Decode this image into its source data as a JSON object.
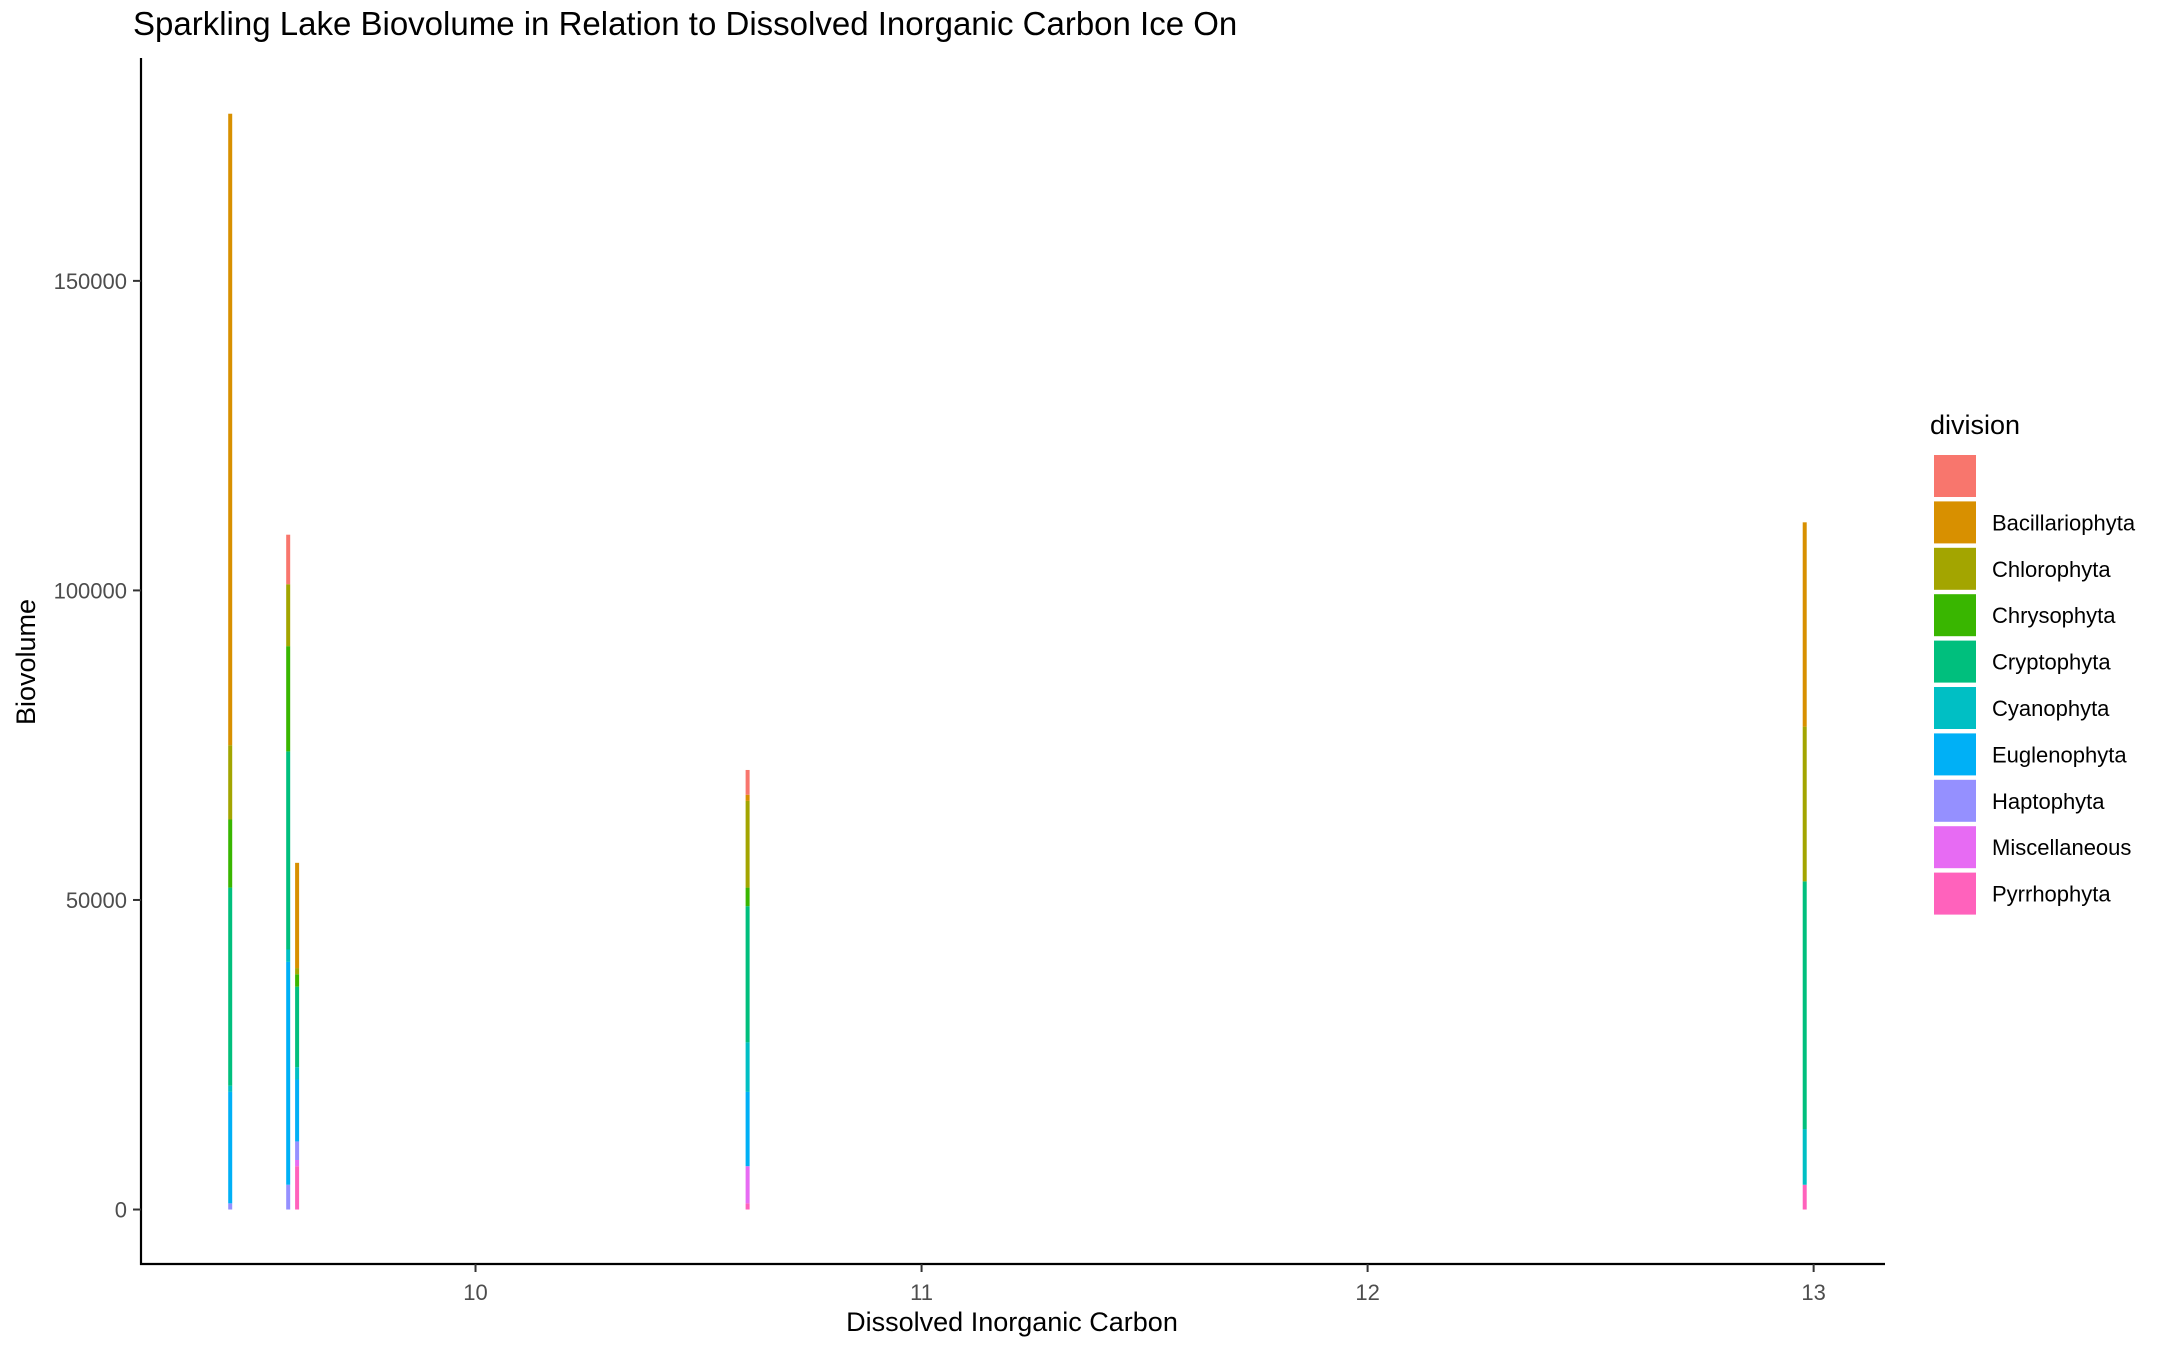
{
  "chart_data": {
    "type": "bar",
    "stacked": true,
    "title": "Sparkling Lake Biovolume in Relation to Dissolved Inorganic Carbon Ice On",
    "xlabel": "Dissolved Inorganic Carbon",
    "ylabel": "Biovolume",
    "xlim": [
      9.25,
      13.16
    ],
    "ylim": [
      -8800,
      186000
    ],
    "x_ticks": [
      10,
      11,
      12,
      13
    ],
    "y_ticks": [
      0,
      50000,
      100000,
      150000
    ],
    "x_tick_labels": [
      "10",
      "11",
      "12",
      "13"
    ],
    "y_tick_labels": [
      "0",
      "50000",
      "100000",
      "150000"
    ],
    "grid": false,
    "legend": {
      "title": "division",
      "position": "right",
      "entries": [
        {
          "label": "",
          "color": "#F8766D"
        },
        {
          "label": "Bacillariophyta",
          "color": "#D89000"
        },
        {
          "label": "Chlorophyta",
          "color": "#A3A500"
        },
        {
          "label": "Chrysophyta",
          "color": "#39B600"
        },
        {
          "label": "Cryptophyta",
          "color": "#00BF7D"
        },
        {
          "label": "Cyanophyta",
          "color": "#00BFC4"
        },
        {
          "label": "Euglenophyta",
          "color": "#00B0F6"
        },
        {
          "label": "Haptophyta",
          "color": "#9590FF"
        },
        {
          "label": "Miscellaneous",
          "color": "#E76BF3"
        },
        {
          "label": "Pyrrhophyta",
          "color": "#FF62BC"
        }
      ]
    },
    "stack_order_bottom_to_top": [
      "Pyrrhophyta",
      "Miscellaneous",
      "Haptophyta",
      "Euglenophyta",
      "Cyanophyta",
      "Cryptophyta",
      "Chrysophyta",
      "Chlorophyta",
      "Bacillariophyta",
      ""
    ],
    "bars": [
      {
        "x": 9.45,
        "segments": {
          "Haptophyta": 1000,
          "Euglenophyta": 18000,
          "Cyanophyta": 1000,
          "Cryptophyta": 32000,
          "Chrysophyta": 11000,
          "Chlorophyta": 12000,
          "Bacillariophyta": 102000
        }
      },
      {
        "x": 9.58,
        "segments": {
          "Haptophyta": 4000,
          "Euglenophyta": 36000,
          "Cyanophyta": 2000,
          "Cryptophyta": 32000,
          "Chrysophyta": 17000,
          "Chlorophyta": 10000,
          "": 8000
        }
      },
      {
        "x": 9.6,
        "segments": {
          "Pyrrhophyta": 7000,
          "Miscellaneous": 1000,
          "Haptophyta": 3000,
          "Euglenophyta": 10000,
          "Cyanophyta": 2000,
          "Cryptophyta": 13000,
          "Chrysophyta": 2000,
          "Chlorophyta": 1000,
          "Bacillariophyta": 17000
        }
      },
      {
        "x": 10.61,
        "segments": {
          "Pyrrhophyta": 1000,
          "Miscellaneous": 6000,
          "Euglenophyta": 12000,
          "Cyanophyta": 8000,
          "Cryptophyta": 22000,
          "Chrysophyta": 3000,
          "Chlorophyta": 14000,
          "Bacillariophyta": 1000,
          "": 4000
        }
      },
      {
        "x": 12.98,
        "segments": {
          "Pyrrhophyta": 4000,
          "Cyanophyta": 9000,
          "Cryptophyta": 40000,
          "Chlorophyta": 25000,
          "Bacillariophyta": 33000
        }
      }
    ]
  }
}
